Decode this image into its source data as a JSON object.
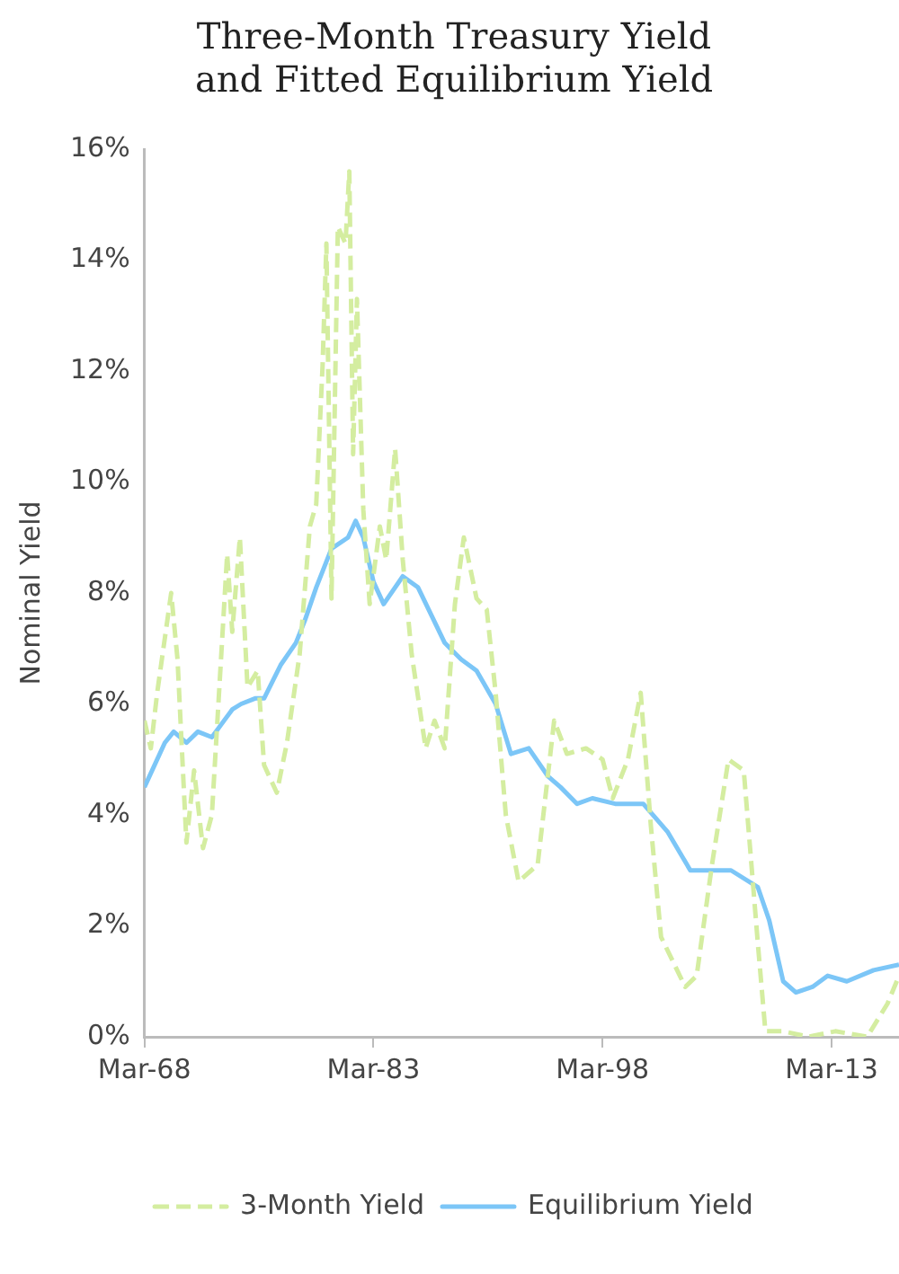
{
  "chart_data": {
    "type": "line",
    "title": "Three-Month Treasury Yield\nand Fitted Equilibrium Yield",
    "ylabel": "Nominal Yield",
    "xlim": [
      "1968-03",
      "2017-08"
    ],
    "xticks": [
      {
        "value": "1968-03",
        "label": "Mar-68"
      },
      {
        "value": "1983-03",
        "label": "Mar-83"
      },
      {
        "value": "1998-03",
        "label": "Mar-98"
      },
      {
        "value": "2013-03",
        "label": "Mar-13"
      }
    ],
    "ylim": [
      0,
      16
    ],
    "yticks": [
      {
        "value": 0,
        "label": "0%"
      },
      {
        "value": 2,
        "label": "2%"
      },
      {
        "value": 4,
        "label": "4%"
      },
      {
        "value": 6,
        "label": "6%"
      },
      {
        "value": 8,
        "label": "8%"
      },
      {
        "value": 10,
        "label": "10%"
      },
      {
        "value": 12,
        "label": "12%"
      },
      {
        "value": 14,
        "label": "14%"
      },
      {
        "value": 16,
        "label": "16%"
      }
    ],
    "grid": false,
    "legend": "bottom",
    "marker": "none",
    "series": [
      {
        "name": "3-Month Yield",
        "color": "#d4eda0",
        "line_style": "dashed",
        "x": [
          "1968-03",
          "1968-08",
          "1969-01",
          "1969-12",
          "1970-05",
          "1970-12",
          "1971-06",
          "1972-01",
          "1972-08",
          "1973-08",
          "1973-12",
          "1974-06",
          "1974-12",
          "1975-08",
          "1976-01",
          "1976-11",
          "1977-07",
          "1978-05",
          "1979-01",
          "1979-06",
          "1979-11",
          "1980-02",
          "1980-06",
          "1980-11",
          "1981-05",
          "1981-08",
          "1981-11",
          "1982-02",
          "1982-07",
          "1982-12",
          "1983-08",
          "1984-01",
          "1984-08",
          "1985-02",
          "1985-09",
          "1986-08",
          "1987-03",
          "1987-11",
          "1988-07",
          "1989-02",
          "1989-12",
          "1990-08",
          "1991-03",
          "1991-11",
          "1992-09",
          "1993-12",
          "1995-01",
          "1995-11",
          "1997-02",
          "1998-03",
          "1998-11",
          "1999-11",
          "2000-09",
          "2001-05",
          "2002-01",
          "2003-08",
          "2004-05",
          "2005-05",
          "2006-06",
          "2007-06",
          "2008-05",
          "2008-11",
          "2010-01",
          "2011-09",
          "2013-06",
          "2015-07",
          "2016-11",
          "2017-08"
        ],
        "values": [
          5.7,
          5.2,
          6.2,
          8.0,
          6.8,
          3.5,
          4.8,
          3.4,
          4.0,
          8.7,
          7.3,
          9.0,
          6.3,
          6.6,
          4.9,
          4.4,
          5.3,
          6.9,
          9.2,
          9.6,
          12.1,
          14.3,
          7.9,
          14.6,
          14.3,
          15.6,
          10.5,
          13.3,
          9.5,
          7.8,
          9.2,
          8.6,
          10.6,
          8.6,
          6.9,
          5.2,
          5.7,
          5.2,
          7.8,
          9.0,
          7.9,
          7.7,
          6.2,
          4.0,
          2.8,
          3.1,
          5.7,
          5.1,
          5.2,
          5.0,
          4.3,
          5.0,
          6.2,
          3.8,
          1.8,
          0.9,
          1.1,
          3.1,
          5.0,
          4.8,
          1.7,
          0.1,
          0.1,
          0.0,
          0.1,
          0.0,
          0.6,
          1.1
        ]
      },
      {
        "name": "Equilibrium Yield",
        "color": "#7cc6f7",
        "line_style": "solid",
        "x": [
          "1968-03",
          "1969-07",
          "1970-02",
          "1970-12",
          "1971-09",
          "1972-08",
          "1973-12",
          "1974-07",
          "1975-06",
          "1976-01",
          "1977-02",
          "1978-02",
          "1978-09",
          "1979-06",
          "1980-06",
          "1981-07",
          "1982-01",
          "1982-07",
          "1983-03",
          "1983-11",
          "1985-02",
          "1986-02",
          "1987-11",
          "1988-12",
          "1989-12",
          "1991-03",
          "1992-03",
          "1993-05",
          "1994-08",
          "1995-06",
          "1996-07",
          "1997-07",
          "1999-01",
          "2000-11",
          "2002-06",
          "2003-12",
          "2006-08",
          "2008-05",
          "2009-02",
          "2010-01",
          "2010-11",
          "2011-12",
          "2012-12",
          "2014-03",
          "2015-12",
          "2017-08"
        ],
        "values": [
          4.5,
          5.3,
          5.5,
          5.3,
          5.5,
          5.4,
          5.9,
          6.0,
          6.1,
          6.1,
          6.7,
          7.1,
          7.5,
          8.1,
          8.8,
          9.0,
          9.3,
          9.0,
          8.2,
          7.8,
          8.3,
          8.1,
          7.1,
          6.8,
          6.6,
          6.0,
          5.1,
          5.2,
          4.7,
          4.5,
          4.2,
          4.3,
          4.2,
          4.2,
          3.7,
          3.0,
          3.0,
          2.7,
          2.1,
          1.0,
          0.8,
          0.9,
          1.1,
          1.0,
          1.2,
          1.3
        ]
      }
    ]
  }
}
